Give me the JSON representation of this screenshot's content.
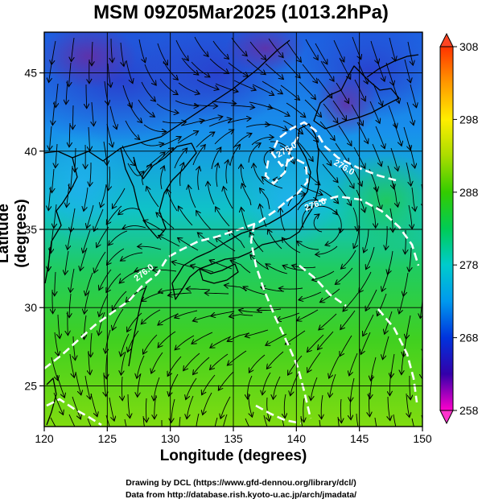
{
  "title": "MSM 09Z05Mar2025 (1013.2hPa)",
  "xlabel": "Longitude (degrees)",
  "ylabel": "Latitude  (degrees)",
  "credits": {
    "line1": "Drawing by DCL (https://www.gfd-dennou.org/library/dcl/)",
    "line2": "Data from http://database.rish.kyoto-u.ac.jp/arch/jmadata/"
  },
  "chart_data": {
    "type": "heatmap",
    "title": "MSM 09Z05Mar2025 (1013.2hPa)",
    "xlabel": "Longitude (degrees)",
    "ylabel": "Latitude  (degrees)",
    "xlim": [
      120,
      150
    ],
    "ylim": [
      22.4,
      47.6
    ],
    "xticks": [
      120,
      125,
      130,
      135,
      140,
      145,
      150
    ],
    "yticks": [
      25,
      30,
      35,
      40,
      45
    ],
    "grid": true,
    "colorbar": {
      "ticks": [
        258,
        268,
        278,
        288,
        298,
        308
      ],
      "range": [
        258,
        308
      ],
      "colors": [
        "#ff00cc",
        "#3300aa",
        "#0033dd",
        "#0099ee",
        "#00cccc",
        "#00cc55",
        "#33cc00",
        "#aadd00",
        "#ffee00",
        "#ff9900",
        "#ff3300"
      ]
    },
    "contours": [
      {
        "label": "276.0",
        "lon": 138.8,
        "lat": 40.8
      },
      {
        "label": "276.0",
        "lon": 143.2,
        "lat": 40.5
      },
      {
        "label": "276.0",
        "lon": 140.3,
        "lat": 37.4
      },
      {
        "label": "276.0",
        "lon": 129.3,
        "lat": 33.1
      }
    ],
    "vortices": [
      {
        "lon": 138.2,
        "lat": 39.6
      },
      {
        "lon": 142.3,
        "lat": 35.3
      }
    ]
  }
}
